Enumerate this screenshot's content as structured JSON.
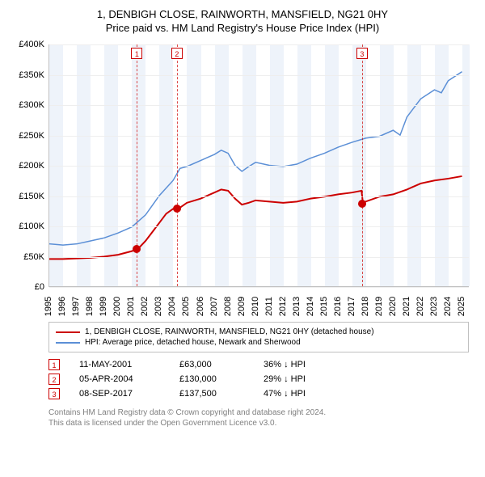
{
  "title": {
    "line1": "1, DENBIGH CLOSE, RAINWORTH, MANSFIELD, NG21 0HY",
    "line2": "Price paid vs. HM Land Registry's House Price Index (HPI)"
  },
  "chart": {
    "type": "line",
    "background_color": "#ffffff",
    "grid_color": "#eeeeee",
    "axis_color": "#c0c0c0",
    "band_color": "#eef3fa",
    "xlim": [
      1995,
      2025.5
    ],
    "ylim": [
      0,
      400000
    ],
    "yticks": [
      0,
      50000,
      100000,
      150000,
      200000,
      250000,
      300000,
      350000,
      400000
    ],
    "ytick_labels": [
      "£0",
      "£50K",
      "£100K",
      "£150K",
      "£200K",
      "£250K",
      "£300K",
      "£350K",
      "£400K"
    ],
    "xticks": [
      1995,
      1996,
      1997,
      1998,
      1999,
      2000,
      2001,
      2002,
      2003,
      2004,
      2005,
      2006,
      2007,
      2008,
      2009,
      2010,
      2011,
      2012,
      2013,
      2014,
      2015,
      2016,
      2017,
      2018,
      2019,
      2020,
      2021,
      2022,
      2023,
      2024,
      2025
    ],
    "band_years": [
      1995,
      1997,
      1999,
      2001,
      2003,
      2005,
      2007,
      2009,
      2011,
      2013,
      2015,
      2017,
      2019,
      2021,
      2023,
      2025
    ],
    "series": [
      {
        "name": "1, DENBIGH CLOSE, RAINWORTH, MANSFIELD, NG21 0HY (detached house)",
        "color": "#cc0000",
        "width": 2,
        "points": [
          [
            1995,
            45000
          ],
          [
            1996,
            45000
          ],
          [
            1997,
            46000
          ],
          [
            1998,
            47000
          ],
          [
            1999,
            49000
          ],
          [
            2000,
            52000
          ],
          [
            2001,
            58000
          ],
          [
            2001.5,
            63000
          ],
          [
            2002,
            75000
          ],
          [
            2002.5,
            90000
          ],
          [
            2003,
            105000
          ],
          [
            2003.5,
            120000
          ],
          [
            2004,
            128000
          ],
          [
            2004.5,
            130000
          ],
          [
            2005,
            138000
          ],
          [
            2006,
            145000
          ],
          [
            2007,
            155000
          ],
          [
            2007.5,
            160000
          ],
          [
            2008,
            158000
          ],
          [
            2008.5,
            145000
          ],
          [
            2009,
            135000
          ],
          [
            2009.5,
            138000
          ],
          [
            2010,
            142000
          ],
          [
            2011,
            140000
          ],
          [
            2012,
            138000
          ],
          [
            2013,
            140000
          ],
          [
            2014,
            145000
          ],
          [
            2015,
            148000
          ],
          [
            2016,
            152000
          ],
          [
            2017,
            155000
          ],
          [
            2017.7,
            158000
          ],
          [
            2017.8,
            137500
          ],
          [
            2018,
            140000
          ],
          [
            2019,
            148000
          ],
          [
            2020,
            152000
          ],
          [
            2021,
            160000
          ],
          [
            2022,
            170000
          ],
          [
            2023,
            175000
          ],
          [
            2024,
            178000
          ],
          [
            2025,
            182000
          ]
        ]
      },
      {
        "name": "HPI: Average price, detached house, Newark and Sherwood",
        "color": "#5b8fd6",
        "width": 1.5,
        "points": [
          [
            1995,
            70000
          ],
          [
            1996,
            68000
          ],
          [
            1997,
            70000
          ],
          [
            1998,
            75000
          ],
          [
            1999,
            80000
          ],
          [
            2000,
            88000
          ],
          [
            2001,
            98000
          ],
          [
            2002,
            118000
          ],
          [
            2003,
            150000
          ],
          [
            2004,
            175000
          ],
          [
            2004.5,
            195000
          ],
          [
            2005,
            198000
          ],
          [
            2006,
            208000
          ],
          [
            2007,
            218000
          ],
          [
            2007.5,
            225000
          ],
          [
            2008,
            220000
          ],
          [
            2008.5,
            200000
          ],
          [
            2009,
            190000
          ],
          [
            2009.5,
            198000
          ],
          [
            2010,
            205000
          ],
          [
            2011,
            200000
          ],
          [
            2012,
            198000
          ],
          [
            2013,
            202000
          ],
          [
            2014,
            212000
          ],
          [
            2015,
            220000
          ],
          [
            2016,
            230000
          ],
          [
            2017,
            238000
          ],
          [
            2018,
            245000
          ],
          [
            2019,
            248000
          ],
          [
            2020,
            258000
          ],
          [
            2020.5,
            250000
          ],
          [
            2021,
            280000
          ],
          [
            2022,
            310000
          ],
          [
            2023,
            325000
          ],
          [
            2023.5,
            320000
          ],
          [
            2024,
            340000
          ],
          [
            2025,
            355000
          ]
        ]
      }
    ],
    "markers": [
      {
        "num": "1",
        "year": 2001.36,
        "price": 63000
      },
      {
        "num": "2",
        "year": 2004.26,
        "price": 130000
      },
      {
        "num": "3",
        "year": 2017.69,
        "price": 137500
      }
    ]
  },
  "legend": [
    {
      "color": "#cc0000",
      "label": "1, DENBIGH CLOSE, RAINWORTH, MANSFIELD, NG21 0HY (detached house)"
    },
    {
      "color": "#5b8fd6",
      "label": "HPI: Average price, detached house, Newark and Sherwood"
    }
  ],
  "events": [
    {
      "num": "1",
      "date": "11-MAY-2001",
      "price": "£63,000",
      "pct": "36% ↓ HPI"
    },
    {
      "num": "2",
      "date": "05-APR-2004",
      "price": "£130,000",
      "pct": "29% ↓ HPI"
    },
    {
      "num": "3",
      "date": "08-SEP-2017",
      "price": "£137,500",
      "pct": "47% ↓ HPI"
    }
  ],
  "footer": {
    "line1": "Contains HM Land Registry data © Crown copyright and database right 2024.",
    "line2": "This data is licensed under the Open Government Licence v3.0."
  }
}
